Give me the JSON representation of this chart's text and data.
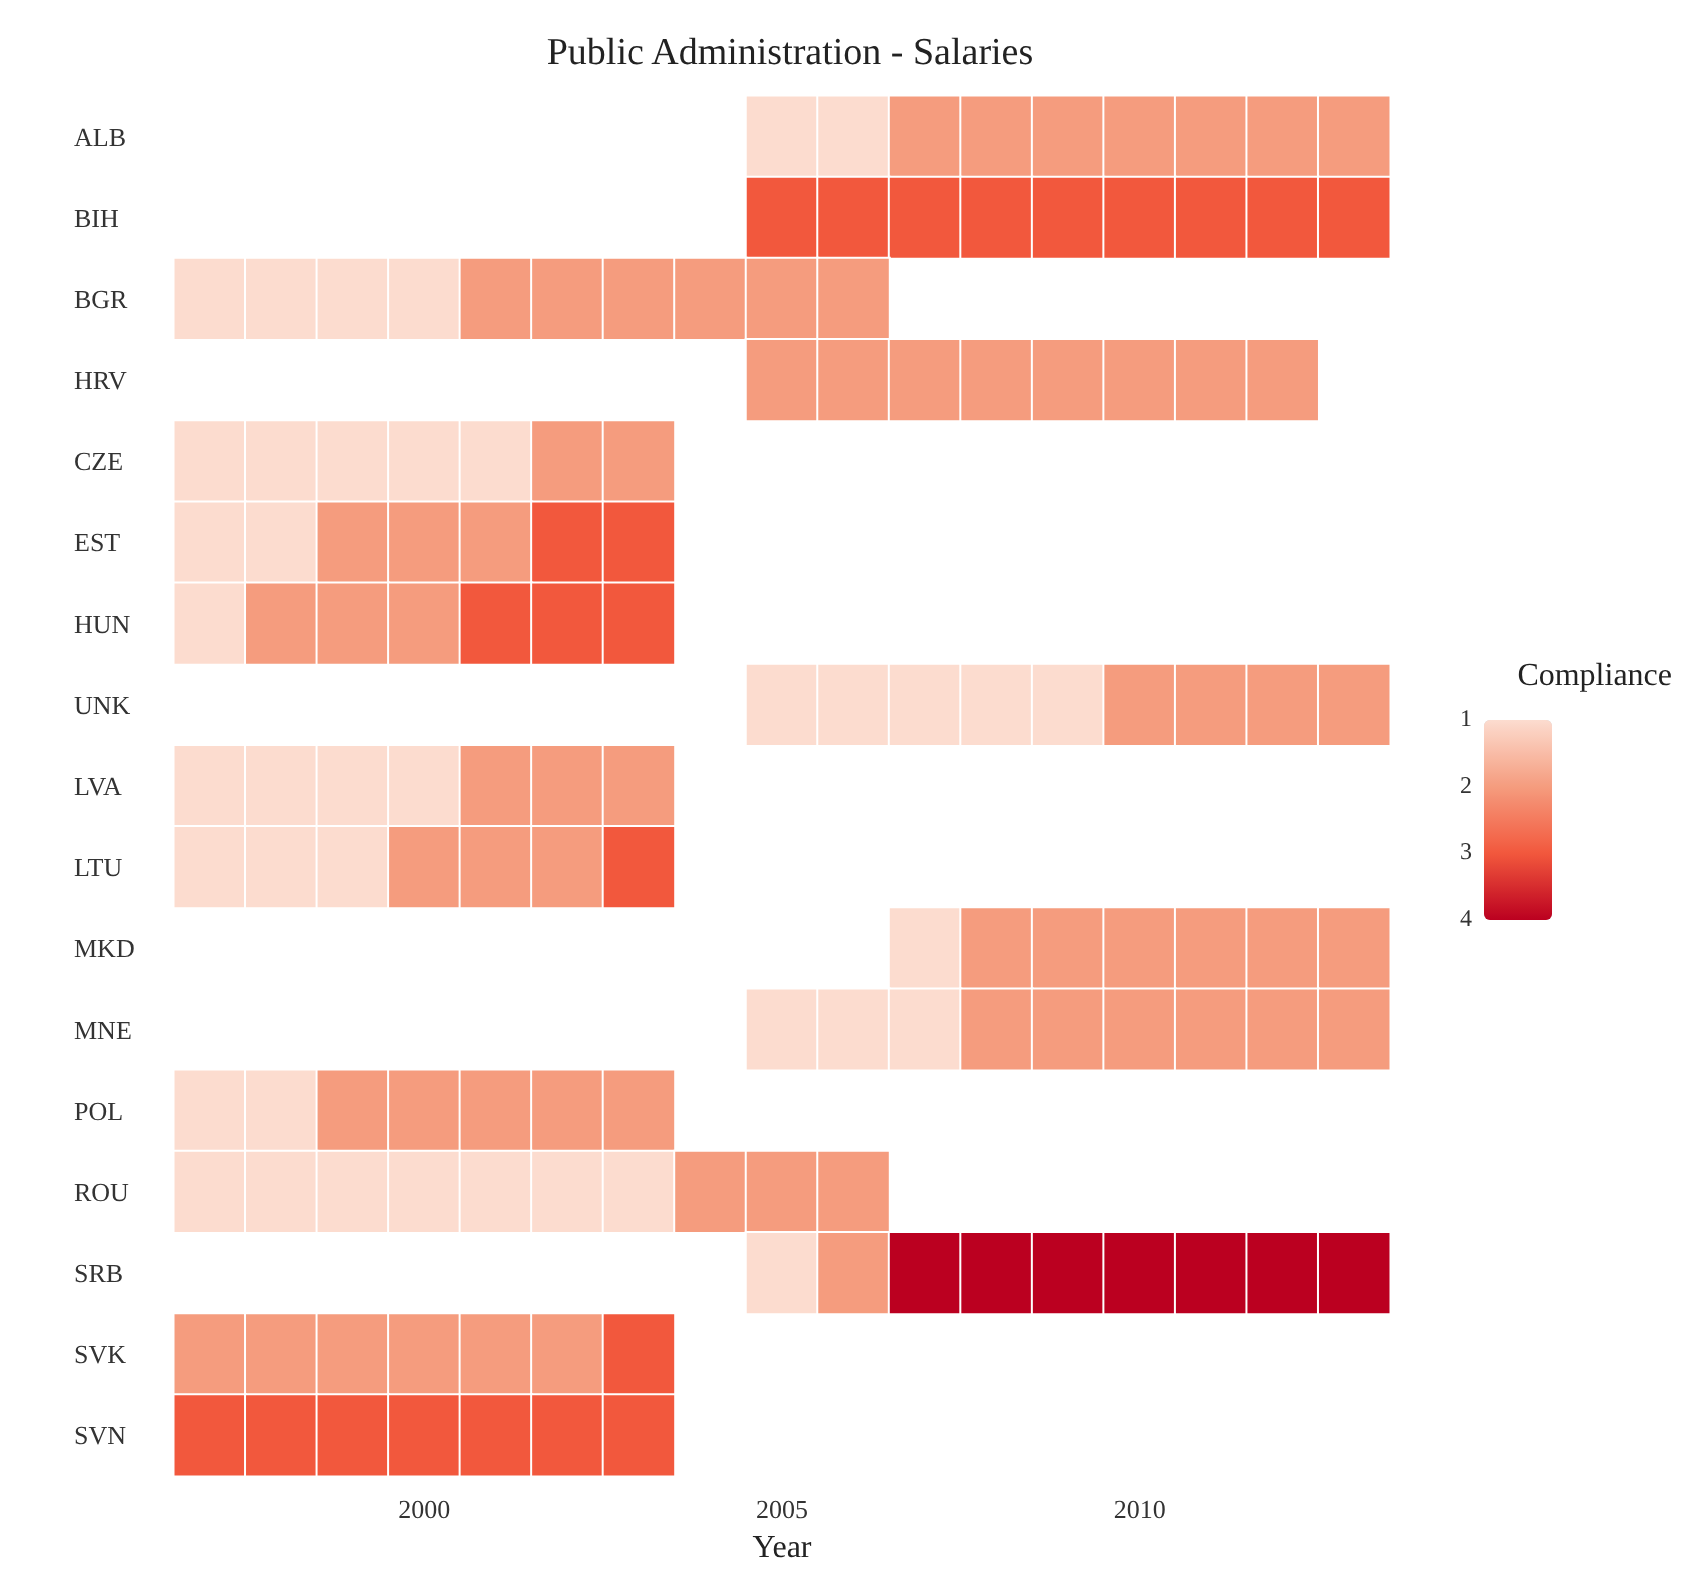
{
  "chart_data": {
    "type": "heatmap",
    "title": "Public Administration - Salaries",
    "xlabel": "Year",
    "legend_title": "Compliance",
    "categories": [
      null,
      null,
      null,
      "2000",
      null,
      null,
      null,
      null,
      "2005",
      null,
      null,
      null,
      null,
      "2010",
      null,
      null,
      null
    ],
    "y_categories": [
      "ALB",
      "BIH",
      "BGR",
      "HRV",
      "CZE",
      "EST",
      "HUN",
      "UNK",
      "LVA",
      "LTU",
      "MKD",
      "MNE",
      "POL",
      "ROU",
      "SRB",
      "SVK",
      "SVN"
    ],
    "cells": [
      [
        null,
        null,
        null,
        null,
        null,
        null,
        null,
        null,
        1,
        1,
        2,
        2,
        2,
        2,
        2,
        2,
        2
      ],
      [
        null,
        null,
        null,
        null,
        null,
        null,
        null,
        null,
        3,
        3,
        3,
        3,
        3,
        3,
        3,
        3,
        3
      ],
      [
        1,
        1,
        1,
        1,
        2,
        2,
        2,
        2,
        2,
        2,
        null,
        null,
        null,
        null,
        null,
        null,
        null
      ],
      [
        null,
        null,
        null,
        null,
        null,
        null,
        null,
        null,
        2,
        2,
        2,
        2,
        2,
        2,
        2,
        2,
        null
      ],
      [
        1,
        1,
        1,
        1,
        1,
        2,
        2,
        null,
        null,
        null,
        null,
        null,
        null,
        null,
        null,
        null,
        null
      ],
      [
        1,
        1,
        2,
        2,
        2,
        3,
        3,
        null,
        null,
        null,
        null,
        null,
        null,
        null,
        null,
        null,
        null
      ],
      [
        1,
        2,
        2,
        2,
        3,
        3,
        3,
        null,
        null,
        null,
        null,
        null,
        null,
        null,
        null,
        null,
        null
      ],
      [
        null,
        null,
        null,
        null,
        null,
        null,
        null,
        null,
        1,
        1,
        1,
        1,
        1,
        2,
        2,
        2,
        2
      ],
      [
        1,
        1,
        1,
        1,
        2,
        2,
        2,
        null,
        null,
        null,
        null,
        null,
        null,
        null,
        null,
        null,
        null
      ],
      [
        1,
        1,
        1,
        2,
        2,
        2,
        3,
        null,
        null,
        null,
        null,
        null,
        null,
        null,
        null,
        null,
        null
      ],
      [
        null,
        null,
        null,
        null,
        null,
        null,
        null,
        null,
        null,
        null,
        1,
        2,
        2,
        2,
        2,
        2,
        2
      ],
      [
        null,
        null,
        null,
        null,
        null,
        null,
        null,
        null,
        1,
        1,
        1,
        2,
        2,
        2,
        2,
        2,
        2
      ],
      [
        1,
        1,
        2,
        2,
        2,
        2,
        2,
        null,
        null,
        null,
        null,
        null,
        null,
        null,
        null,
        null,
        null
      ],
      [
        1,
        1,
        1,
        1,
        1,
        1,
        1,
        2,
        2,
        2,
        null,
        null,
        null,
        null,
        null,
        null,
        null
      ],
      [
        null,
        null,
        null,
        null,
        null,
        null,
        null,
        null,
        1,
        2,
        4,
        4,
        4,
        4,
        4,
        4,
        4
      ],
      [
        2,
        2,
        2,
        2,
        2,
        2,
        3,
        null,
        null,
        null,
        null,
        null,
        null,
        null,
        null,
        null,
        null
      ],
      [
        3,
        3,
        3,
        3,
        3,
        3,
        3,
        null,
        null,
        null,
        null,
        null,
        null,
        null,
        null,
        null,
        null
      ]
    ],
    "clim": [
      1,
      4
    ],
    "cticks": [
      1,
      2,
      3,
      4
    ],
    "colors": [
      "#fcdccf",
      "#f59c7e",
      "#f2583d",
      "#bb0020"
    ],
    "grid": false
  }
}
